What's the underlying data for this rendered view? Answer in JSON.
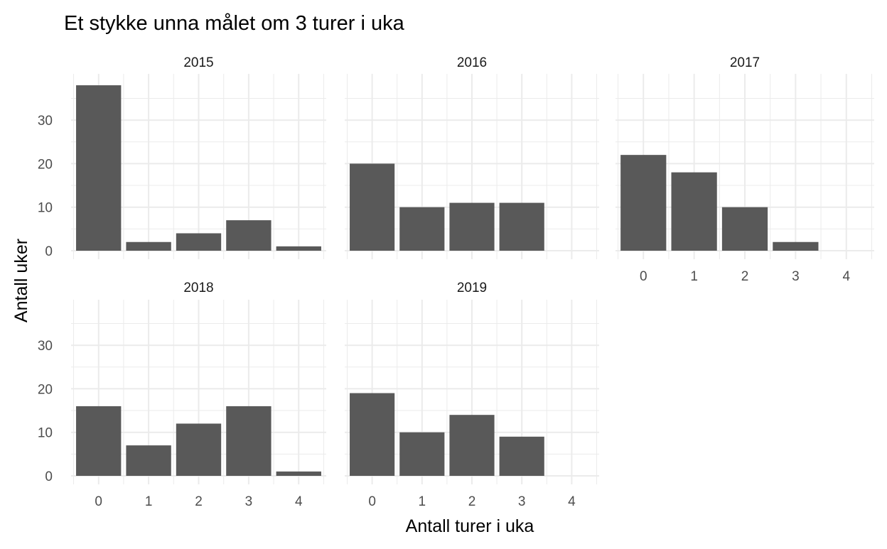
{
  "chart_data": {
    "type": "bar",
    "title": "Et stykke unna målet om 3 turer i uka",
    "xlabel": "Antall turer i uka",
    "ylabel": "Antall uker",
    "categories": [
      "0",
      "1",
      "2",
      "3",
      "4"
    ],
    "y_ticks": [
      "0",
      "10",
      "20",
      "30"
    ],
    "ylim": [
      0,
      38
    ],
    "grid": true,
    "bar_color": "#595959",
    "grid_color": "#ebebeb",
    "facets": [
      {
        "label": "2015",
        "values": [
          38,
          2,
          4,
          7,
          1
        ]
      },
      {
        "label": "2016",
        "values": [
          20,
          10,
          11,
          11,
          0
        ]
      },
      {
        "label": "2017",
        "values": [
          22,
          18,
          10,
          2,
          0
        ]
      },
      {
        "label": "2018",
        "values": [
          16,
          7,
          12,
          16,
          1
        ]
      },
      {
        "label": "2019",
        "values": [
          19,
          10,
          14,
          9,
          0
        ]
      }
    ]
  }
}
